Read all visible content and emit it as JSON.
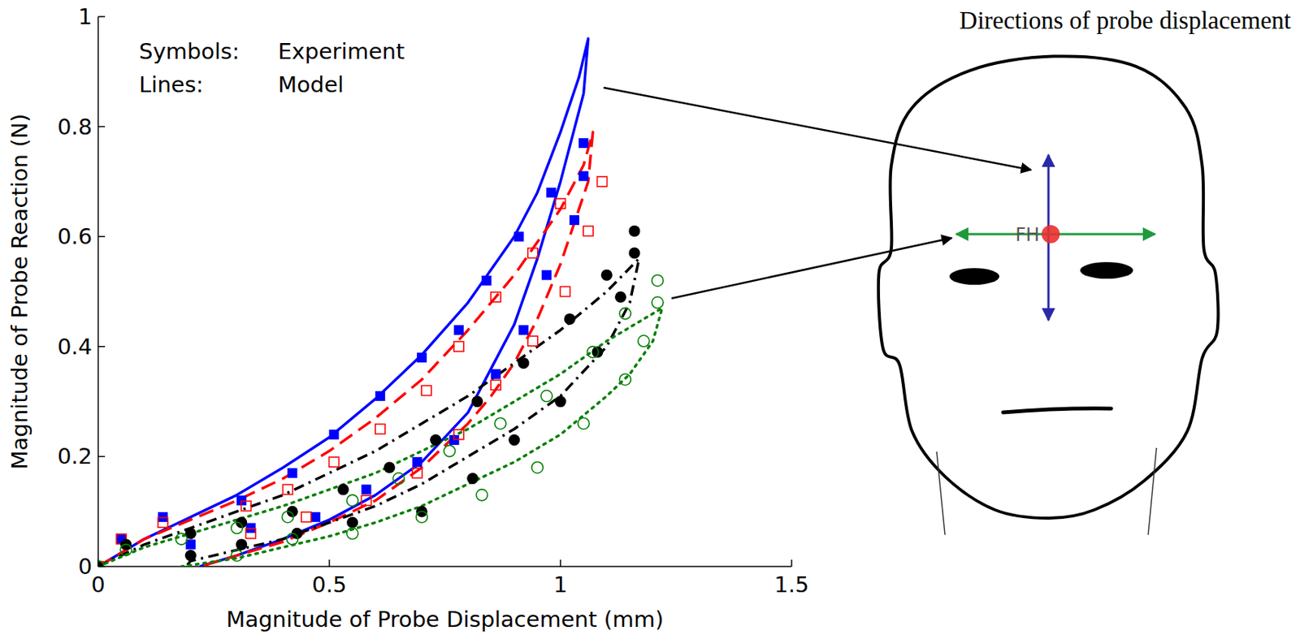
{
  "chart_data": {
    "type": "scatter",
    "x_label": "Magnitude of Probe Displacement (mm)",
    "y_label": "Magnitude of Probe Reaction (N)",
    "annotations": [
      "Symbols: Experiment",
      "Lines: Model"
    ],
    "xlim": [
      0,
      1.5
    ],
    "xticks": [
      0,
      0.5,
      1,
      1.5
    ],
    "ylim": [
      0,
      1
    ],
    "yticks": [
      0,
      0.2,
      0.4,
      0.6,
      0.8,
      1
    ],
    "grid": false,
    "series": [
      {
        "type": "line",
        "color": "#0000ff",
        "line_style": "solid",
        "x": [
          0,
          0.1,
          0.2,
          0.3,
          0.4,
          0.5,
          0.6,
          0.7,
          0.8,
          0.9,
          0.95,
          1.0,
          1.04,
          1.06,
          1.05,
          1.0,
          0.95,
          0.9,
          0.85,
          0.8,
          0.7,
          0.6,
          0.5,
          0.4,
          0.3,
          0.22
        ],
        "values": [
          0,
          0.05,
          0.09,
          0.13,
          0.18,
          0.235,
          0.305,
          0.385,
          0.48,
          0.6,
          0.68,
          0.79,
          0.89,
          0.96,
          0.86,
          0.7,
          0.56,
          0.44,
          0.36,
          0.28,
          0.19,
          0.13,
          0.085,
          0.05,
          0.02,
          0
        ]
      },
      {
        "type": "line",
        "color": "#ff0000",
        "line_style": "dashed",
        "x": [
          0,
          0.1,
          0.2,
          0.3,
          0.4,
          0.5,
          0.6,
          0.7,
          0.8,
          0.9,
          1.0,
          1.05,
          1.07,
          1.06,
          1.0,
          0.95,
          0.9,
          0.85,
          0.8,
          0.7,
          0.6,
          0.5,
          0.4,
          0.3,
          0.22
        ],
        "values": [
          0,
          0.05,
          0.085,
          0.12,
          0.16,
          0.21,
          0.27,
          0.34,
          0.43,
          0.53,
          0.65,
          0.73,
          0.79,
          0.7,
          0.55,
          0.45,
          0.37,
          0.31,
          0.26,
          0.18,
          0.12,
          0.08,
          0.045,
          0.02,
          0
        ]
      },
      {
        "type": "line",
        "color": "#000000",
        "line_style": "dashdot",
        "x": [
          0,
          0.1,
          0.2,
          0.3,
          0.4,
          0.5,
          0.6,
          0.7,
          0.8,
          0.9,
          1.0,
          1.1,
          1.17,
          1.15,
          1.1,
          1.0,
          0.9,
          0.8,
          0.7,
          0.6,
          0.5,
          0.4,
          0.3,
          0.2,
          0.19
        ],
        "values": [
          0,
          0.04,
          0.07,
          0.1,
          0.13,
          0.17,
          0.21,
          0.26,
          0.31,
          0.37,
          0.43,
          0.5,
          0.56,
          0.48,
          0.4,
          0.31,
          0.25,
          0.2,
          0.15,
          0.11,
          0.08,
          0.05,
          0.03,
          0.01,
          0
        ]
      },
      {
        "type": "line",
        "color": "#008000",
        "line_style": "dotted",
        "x": [
          0,
          0.1,
          0.2,
          0.3,
          0.4,
          0.5,
          0.6,
          0.7,
          0.8,
          0.9,
          1.0,
          1.1,
          1.22,
          1.2,
          1.15,
          1.1,
          1.0,
          0.9,
          0.8,
          0.7,
          0.6,
          0.5,
          0.4,
          0.3,
          0.18
        ],
        "values": [
          0,
          0.035,
          0.06,
          0.085,
          0.11,
          0.14,
          0.17,
          0.21,
          0.25,
          0.3,
          0.35,
          0.41,
          0.47,
          0.41,
          0.35,
          0.31,
          0.24,
          0.19,
          0.15,
          0.11,
          0.08,
          0.055,
          0.035,
          0.015,
          0
        ]
      },
      {
        "type": "scatter",
        "color": "#0000ff",
        "marker": "square",
        "x": [
          0,
          0.05,
          0.14,
          0.31,
          0.42,
          0.51,
          0.61,
          0.7,
          0.78,
          0.84,
          0.91,
          0.98,
          1.05,
          1.05,
          1.03,
          0.97,
          0.92,
          0.86,
          0.77,
          0.69,
          0.58,
          0.47,
          0.33,
          0.2
        ],
        "values": [
          0,
          0.05,
          0.09,
          0.12,
          0.17,
          0.24,
          0.31,
          0.38,
          0.43,
          0.52,
          0.6,
          0.68,
          0.77,
          0.71,
          0.63,
          0.53,
          0.43,
          0.35,
          0.23,
          0.19,
          0.14,
          0.09,
          0.07,
          0.04
        ]
      },
      {
        "type": "scatter",
        "color": "#ff0000",
        "marker": "square-open",
        "x": [
          0,
          0.05,
          0.14,
          0.32,
          0.41,
          0.51,
          0.61,
          0.71,
          0.78,
          0.86,
          0.94,
          1.0,
          1.09,
          1.06,
          1.01,
          0.94,
          0.86,
          0.78,
          0.69,
          0.58,
          0.45,
          0.33
        ],
        "values": [
          0,
          0.05,
          0.08,
          0.11,
          0.14,
          0.19,
          0.25,
          0.32,
          0.4,
          0.49,
          0.57,
          0.66,
          0.7,
          0.61,
          0.5,
          0.41,
          0.33,
          0.24,
          0.17,
          0.12,
          0.09,
          0.06
        ]
      },
      {
        "type": "scatter",
        "color": "#000000",
        "marker": "circle",
        "x": [
          0,
          0.06,
          0.2,
          0.31,
          0.42,
          0.53,
          0.63,
          0.73,
          0.82,
          0.92,
          1.02,
          1.1,
          1.16,
          1.16,
          1.13,
          1.08,
          1.0,
          0.9,
          0.81,
          0.7,
          0.55,
          0.43,
          0.31,
          0.2
        ],
        "values": [
          0,
          0.04,
          0.06,
          0.08,
          0.1,
          0.14,
          0.18,
          0.23,
          0.3,
          0.37,
          0.45,
          0.53,
          0.61,
          0.57,
          0.49,
          0.39,
          0.3,
          0.23,
          0.16,
          0.1,
          0.08,
          0.06,
          0.04,
          0.02
        ]
      },
      {
        "type": "scatter",
        "color": "#008000",
        "marker": "circle-open",
        "x": [
          0,
          0.06,
          0.18,
          0.3,
          0.41,
          0.55,
          0.65,
          0.76,
          0.87,
          0.97,
          1.07,
          1.14,
          1.21,
          1.21,
          1.18,
          1.14,
          1.05,
          0.95,
          0.83,
          0.7,
          0.55,
          0.42,
          0.3
        ],
        "values": [
          0,
          0.03,
          0.05,
          0.07,
          0.09,
          0.12,
          0.16,
          0.21,
          0.26,
          0.31,
          0.39,
          0.46,
          0.52,
          0.48,
          0.41,
          0.34,
          0.26,
          0.18,
          0.13,
          0.09,
          0.06,
          0.05,
          0.02
        ]
      }
    ]
  },
  "diagram": {
    "title": "Directions of probe displacement",
    "point_label": "FH"
  }
}
